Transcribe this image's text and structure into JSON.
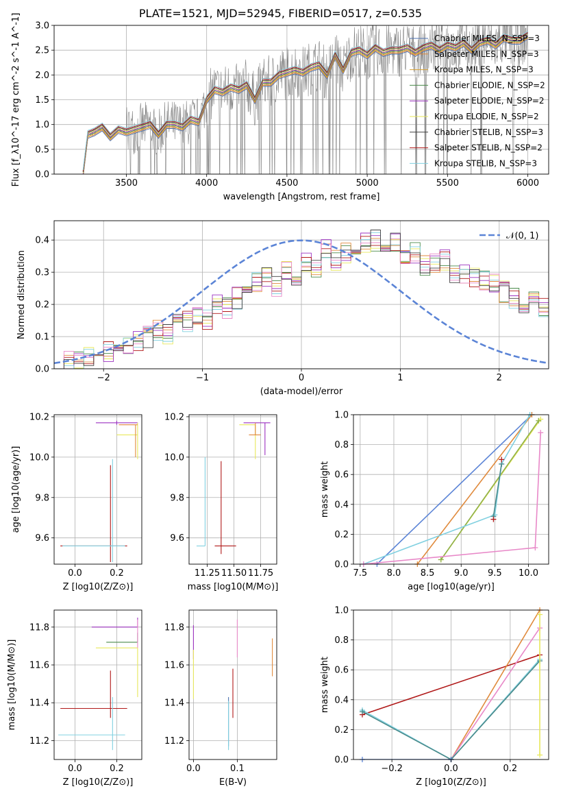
{
  "figure_title": "PLATE=1521, MJD=52945, FIBERID=0517, z=0.535",
  "chart_data": [
    {
      "id": "spectrum",
      "type": "line",
      "xlabel": "wavelength [Angstrom, rest frame]",
      "ylabel": "Flux [f_λ10^-17 erg cm^-2 s^-1 A^-1]",
      "xlim": [
        3050,
        6130
      ],
      "ylim": [
        0,
        3.0
      ],
      "xticks": [
        3500,
        4000,
        4500,
        5000,
        5500,
        6000
      ],
      "yticks": [
        0.0,
        0.5,
        1.0,
        1.5,
        2.0,
        2.5,
        3.0
      ],
      "grid": true,
      "legend_position": "top-right",
      "legend": [
        {
          "label": "Chabrier MILES, N_SSP=3",
          "color": "#4c72b0"
        },
        {
          "label": "Salpeter MILES, N_SSP=3",
          "color": "#e08a3c"
        },
        {
          "label": "Kroupa MILES, N_SSP=3",
          "color": "#d8a030"
        },
        {
          "label": "Chabrier ELODIE, N_SSP=2",
          "color": "#4a8a4a"
        },
        {
          "label": "Salpeter ELODIE, N_SSP=2",
          "color": "#9b30c0"
        },
        {
          "label": "Kroupa ELODIE, N_SSP=2",
          "color": "#e8e85a"
        },
        {
          "label": "Chabrier STELIB, N_SSP=3",
          "color": "#404040"
        },
        {
          "label": "Salpeter STELIB, N_SSP=2",
          "color": "#b01818"
        },
        {
          "label": "Kroupa STELIB, N_SSP=3",
          "color": "#80d0e0"
        }
      ],
      "data_color": "#808080",
      "model_wavelength": [
        3230,
        3260,
        3300,
        3350,
        3400,
        3450,
        3500,
        3550,
        3600,
        3650,
        3700,
        3750,
        3800,
        3850,
        3900,
        3950,
        4000,
        4050,
        4100,
        4150,
        4200,
        4250,
        4300,
        4350,
        4400,
        4450,
        4500,
        4550,
        4600,
        4650,
        4700,
        4750,
        4800,
        4850,
        4900,
        4950,
        5000,
        5050,
        5100,
        5150,
        5200,
        5250,
        5300,
        5350,
        5400,
        5450,
        5500,
        5550,
        5600,
        5650,
        5700,
        5750,
        5800,
        5850,
        5900,
        5950,
        6000
      ],
      "model_flux": [
        0.0,
        0.8,
        0.85,
        0.95,
        0.75,
        0.9,
        0.85,
        0.9,
        0.95,
        1.0,
        0.8,
        1.0,
        1.0,
        0.95,
        1.1,
        1.05,
        1.5,
        1.7,
        1.65,
        1.75,
        1.7,
        1.8,
        1.5,
        1.85,
        1.85,
        2.0,
        2.05,
        2.1,
        2.05,
        2.15,
        2.2,
        2.0,
        2.4,
        2.1,
        2.45,
        2.5,
        2.4,
        2.55,
        2.45,
        2.5,
        2.5,
        2.55,
        2.45,
        2.55,
        2.6,
        2.5,
        2.6,
        2.55,
        2.65,
        2.5,
        2.65,
        2.7,
        2.6,
        2.75,
        2.7,
        2.7,
        2.8
      ]
    },
    {
      "id": "residuals",
      "type": "line",
      "xlabel": "(data-model)/error",
      "ylabel": "Normed distribution",
      "xlim": [
        -2.5,
        2.5
      ],
      "ylim": [
        0,
        0.46
      ],
      "xticks": [
        -2,
        -1,
        0,
        1,
        2
      ],
      "yticks": [
        0.0,
        0.1,
        0.2,
        0.3,
        0.4
      ],
      "grid": true,
      "legend_position": "top-right",
      "legend": [
        {
          "label": "𝒩(0, 1)",
          "color": "#5b84d6"
        }
      ],
      "hist_edges_start": -2.5,
      "hist_bin_width": 0.1,
      "hist_values": [
        0.02,
        0.025,
        0.03,
        0.04,
        0.035,
        0.05,
        0.06,
        0.07,
        0.09,
        0.1,
        0.12,
        0.11,
        0.14,
        0.15,
        0.17,
        0.15,
        0.2,
        0.19,
        0.22,
        0.25,
        0.27,
        0.28,
        0.26,
        0.3,
        0.27,
        0.33,
        0.31,
        0.37,
        0.34,
        0.36,
        0.38,
        0.39,
        0.4,
        0.37,
        0.39,
        0.35,
        0.36,
        0.32,
        0.33,
        0.34,
        0.29,
        0.3,
        0.28,
        0.27,
        0.26,
        0.24,
        0.22,
        0.2,
        0.21,
        0.19,
        0.17,
        0.18,
        0.15,
        0.14,
        0.13,
        0.12,
        0.1,
        0.09,
        0.08,
        0.07,
        0.06,
        0.05,
        0.05,
        0.04,
        0.04
      ]
    },
    {
      "id": "age-vs-Z",
      "type": "scatter",
      "xlabel": "Z [log10(Z/Z⊙)]",
      "ylabel": "age  [log10(age/yr)]",
      "xlim": [
        -0.1,
        0.32
      ],
      "ylim": [
        9.47,
        10.21
      ],
      "xticks": [
        0.0,
        0.2
      ],
      "yticks": [
        9.6,
        9.8,
        10.0,
        10.2
      ],
      "grid": true,
      "points": [
        {
          "x": 0.17,
          "y": 9.56,
          "xerr": [
            0.24,
            0.08
          ],
          "yerr": [
            0.08,
            0.4
          ],
          "color": "#b01818"
        },
        {
          "x": 0.2,
          "y": 10.17,
          "xerr": [
            0.1,
            0.1
          ],
          "yerr": [
            0.01,
            0.01
          ],
          "color": "#9b30c0"
        },
        {
          "x": 0.3,
          "y": 10.11,
          "xerr": [
            0.1,
            0.0
          ],
          "yerr": [
            0.12,
            0.06
          ],
          "color": "#e8e85a"
        },
        {
          "x": 0.18,
          "y": 9.56,
          "xerr": [
            0.24,
            0.06
          ],
          "yerr": [
            0.08,
            0.43
          ],
          "color": "#80d0e0"
        },
        {
          "x": 0.29,
          "y": 10.16,
          "xerr": [
            0.08,
            0.01
          ],
          "yerr": [
            0.16,
            0.0
          ],
          "color": "#e08a3c"
        }
      ]
    },
    {
      "id": "age-vs-mass",
      "type": "scatter",
      "xlabel": "mass [log10(M/M⊙)]",
      "ylabel": "",
      "xlim": [
        11.08,
        11.9
      ],
      "ylim": [
        9.47,
        10.21
      ],
      "xticks": [
        11.25,
        11.5,
        11.75
      ],
      "yticks": [
        9.6,
        9.8,
        10.0,
        10.2
      ],
      "grid": true,
      "points": [
        {
          "x": 11.38,
          "y": 9.56,
          "xerr": [
            0.06,
            0.14
          ],
          "yerr": [
            0.04,
            0.42
          ],
          "color": "#b01818"
        },
        {
          "x": 11.23,
          "y": 9.56,
          "xerr": [
            0.08,
            0.0
          ],
          "yerr": [
            0.0,
            0.44
          ],
          "color": "#80d0e0"
        },
        {
          "x": 11.79,
          "y": 10.17,
          "xerr": [
            0.2,
            0.05
          ],
          "yerr": [
            0.16,
            0.0
          ],
          "color": "#9b30c0"
        },
        {
          "x": 11.7,
          "y": 10.16,
          "xerr": [
            0.15,
            0.0
          ],
          "yerr": [
            0.17,
            0.0
          ],
          "color": "#e8e85a"
        },
        {
          "x": 11.7,
          "y": 10.11,
          "xerr": [
            0.06,
            0.05
          ],
          "yerr": [
            0.0,
            0.06
          ],
          "color": "#e08a3c"
        }
      ]
    },
    {
      "id": "mass-weight-vs-age",
      "type": "line",
      "xlabel": "age  [log10(age/yr)]",
      "ylabel": "mass weight",
      "xlim": [
        7.4,
        10.3
      ],
      "ylim": [
        0,
        1.0
      ],
      "xticks": [
        7.5,
        8.0,
        8.5,
        9.0,
        9.5,
        10.0
      ],
      "yticks": [
        0.0,
        0.2,
        0.4,
        0.6,
        0.8,
        1.0
      ],
      "grid": true,
      "series": [
        {
          "color": "#5b84d6",
          "x": [
            7.75,
            10.05
          ],
          "y": [
            0.0,
            1.0
          ]
        },
        {
          "color": "#e08a3c",
          "x": [
            8.35,
            10.05
          ],
          "y": [
            0.0,
            1.0
          ]
        },
        {
          "color": "#e8e85a",
          "x": [
            8.7,
            10.18
          ],
          "y": [
            0.03,
            0.97
          ]
        },
        {
          "color": "#8fb04a",
          "x": [
            8.7,
            10.15
          ],
          "y": [
            0.03,
            0.96
          ]
        },
        {
          "color": "#80d0e0",
          "x": [
            7.55,
            9.5,
            9.6,
            10.02
          ],
          "y": [
            0.0,
            0.33,
            0.67,
            1.0
          ]
        },
        {
          "color": "#4a8a8a",
          "x": [
            9.48,
            9.6
          ],
          "y": [
            0.32,
            0.67
          ]
        },
        {
          "color": "#e888c8",
          "x": [
            7.55,
            10.1,
            10.18
          ],
          "y": [
            0.0,
            0.11,
            0.88
          ]
        },
        {
          "color": "#b01818",
          "x": [
            9.48,
            9.6
          ],
          "y": [
            0.3,
            0.7
          ],
          "markers_only": true
        }
      ]
    },
    {
      "id": "mass-vs-Z",
      "type": "scatter",
      "xlabel": "Z [log10(Z/Z⊙)]",
      "ylabel": "mass [log10(M/M⊙)]",
      "xlim": [
        -0.1,
        0.32
      ],
      "ylim": [
        11.1,
        11.89
      ],
      "xticks": [
        0.0,
        0.2
      ],
      "yticks": [
        11.2,
        11.4,
        11.6,
        11.8
      ],
      "grid": true,
      "points": [
        {
          "x": 0.17,
          "y": 11.37,
          "xerr": [
            0.24,
            0.08
          ],
          "yerr": [
            0.05,
            0.2
          ],
          "color": "#b01818"
        },
        {
          "x": 0.18,
          "y": 11.23,
          "xerr": [
            0.26,
            0.06
          ],
          "yerr": [
            0.08,
            0.2
          ],
          "color": "#80d0e0"
        },
        {
          "x": 0.3,
          "y": 11.8,
          "xerr": [
            0.22,
            0.0
          ],
          "yerr": [
            0.0,
            0.05
          ],
          "color": "#9b30c0"
        },
        {
          "x": 0.3,
          "y": 11.69,
          "xerr": [
            0.2,
            0.0
          ],
          "yerr": [
            0.26,
            0.0
          ],
          "color": "#e8e85a"
        },
        {
          "x": 0.3,
          "y": 11.72,
          "xerr": [
            0.15,
            0.0
          ],
          "yerr": [
            0.0,
            0.05
          ],
          "color": "#4a8a4a"
        },
        {
          "x": 0.3,
          "y": 11.84,
          "xerr": [
            0.0,
            0.0
          ],
          "yerr": [
            0.15,
            0.0
          ],
          "color": "#e888c8"
        }
      ]
    },
    {
      "id": "mass-vs-ebv",
      "type": "scatter",
      "xlabel": "E(B-V)",
      "ylabel": "",
      "xlim": [
        -0.01,
        0.19
      ],
      "ylim": [
        11.1,
        11.89
      ],
      "xticks": [
        0.0,
        0.1
      ],
      "yticks": [
        11.2,
        11.4,
        11.6,
        11.8
      ],
      "grid": true,
      "points": [
        {
          "x": 0.0,
          "y": 11.72,
          "xerr": [
            0,
            0
          ],
          "yerr": [
            0.09,
            0.09
          ],
          "color": "#9b30c0"
        },
        {
          "x": 0.0,
          "y": 11.55,
          "xerr": [
            0,
            0
          ],
          "yerr": [
            0.13,
            0.13
          ],
          "color": "#e8e85a"
        },
        {
          "x": 0.08,
          "y": 11.3,
          "xerr": [
            0,
            0
          ],
          "yerr": [
            0.13,
            0.13
          ],
          "color": "#4c72b0"
        },
        {
          "x": 0.08,
          "y": 11.28,
          "xerr": [
            0,
            0
          ],
          "yerr": [
            0.13,
            0.13
          ],
          "color": "#80d0e0"
        },
        {
          "x": 0.09,
          "y": 11.45,
          "xerr": [
            0,
            0
          ],
          "yerr": [
            0.13,
            0.13
          ],
          "color": "#b01818"
        },
        {
          "x": 0.1,
          "y": 11.74,
          "xerr": [
            0,
            0
          ],
          "yerr": [
            0.1,
            0.1
          ],
          "color": "#e888c8"
        },
        {
          "x": 0.18,
          "y": 11.64,
          "xerr": [
            0,
            0
          ],
          "yerr": [
            0.1,
            0.1
          ],
          "color": "#e08a3c"
        }
      ]
    },
    {
      "id": "mass-weight-vs-Z",
      "type": "line",
      "xlabel": "Z [log10(Z/Z⊙)]",
      "ylabel": "mass weight",
      "xlim": [
        -0.33,
        0.33
      ],
      "ylim": [
        0,
        1.0
      ],
      "xticks": [
        -0.2,
        0.0,
        0.2
      ],
      "yticks": [
        0.0,
        0.2,
        0.4,
        0.6,
        0.8,
        1.0
      ],
      "grid": true,
      "series": [
        {
          "color": "#b01818",
          "x": [
            -0.3,
            0.3
          ],
          "y": [
            0.3,
            0.7
          ]
        },
        {
          "color": "#e08a3c",
          "x": [
            0.0,
            0.3
          ],
          "y": [
            0.0,
            1.0
          ]
        },
        {
          "color": "#e888c8",
          "x": [
            0.0,
            0.3
          ],
          "y": [
            0.0,
            0.88
          ]
        },
        {
          "color": "#80d0e0",
          "x": [
            -0.3,
            0.0,
            0.3
          ],
          "y": [
            0.33,
            0.0,
            0.67
          ]
        },
        {
          "color": "#4a8a8a",
          "x": [
            -0.3,
            0.0,
            0.3
          ],
          "y": [
            0.32,
            0.0,
            0.66
          ]
        },
        {
          "color": "#5b84d6",
          "x": [
            -0.3,
            0.0
          ],
          "y": [
            0.0,
            0.0
          ]
        },
        {
          "color": "#e8e85a",
          "x": [
            0.3,
            0.3
          ],
          "y": [
            0.03,
            0.97
          ]
        }
      ]
    }
  ]
}
